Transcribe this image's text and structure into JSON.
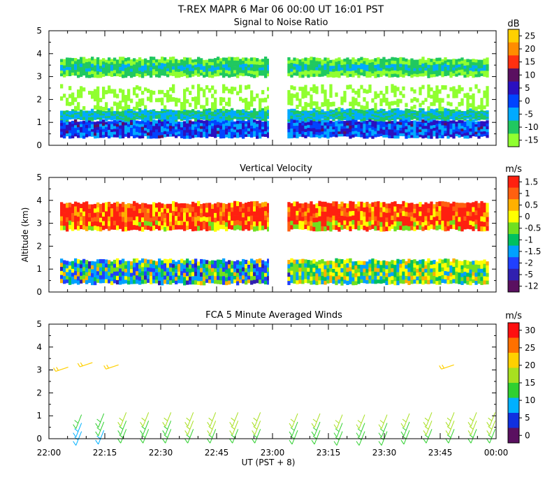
{
  "header": {
    "line1": "T-REX   MAPR   6 Mar 06   00:00 UT   16:01   PST"
  },
  "shared_axes": {
    "x_tick_labels": [
      "22:00",
      "22:15",
      "22:30",
      "22:45",
      "23:00",
      "23:15",
      "23:30",
      "23:45",
      "00:00"
    ],
    "x_label": "UT  (PST + 8)",
    "y_label": "Altitude (km)",
    "y_tick_labels": [
      "0",
      "1",
      "2",
      "3",
      "4",
      "5"
    ],
    "y_range": [
      0,
      5
    ],
    "x_range_minutes": [
      0,
      120
    ]
  },
  "chart_data": [
    {
      "type": "heatmap",
      "title": "Signal to Noise Ratio",
      "units": "dB",
      "colorbar_labels": [
        "25",
        "20",
        "15",
        "10",
        "5",
        "0",
        "-5",
        "-10",
        "-15"
      ],
      "colors": [
        "#ffd000",
        "#ff8c00",
        "#ff3010",
        "#5a1060",
        "#2a10c0",
        "#0044ff",
        "#00aaff",
        "#20c860",
        "#90ff30"
      ],
      "data_gap_minutes": [
        3,
        59,
        64,
        118
      ],
      "bands": [
        {
          "alt_from": 0.35,
          "alt_to": 1.1,
          "value_db": 2
        },
        {
          "alt_from": 1.1,
          "alt_to": 1.55,
          "value_db": -8
        },
        {
          "alt_from": 1.55,
          "alt_to": 2.6,
          "value_db": -14
        },
        {
          "alt_from": 3.0,
          "alt_to": 3.8,
          "value_db": -9
        }
      ]
    },
    {
      "type": "heatmap",
      "title": "Vertical Velocity",
      "units": "m/s",
      "colorbar_labels": [
        "1.5",
        "1",
        "0.5",
        "0",
        "-0.5",
        "-1",
        "-1.5",
        "-2",
        "-5",
        "-12"
      ],
      "colors": [
        "#ff2010",
        "#ff6010",
        "#ffb000",
        "#ffff00",
        "#70e020",
        "#00c060",
        "#00a0ff",
        "#2040ff",
        "#3020b0",
        "#5a1060"
      ],
      "data_gap_minutes": [
        3,
        59,
        64,
        118
      ],
      "bands": [
        {
          "alt_from": 0.35,
          "alt_to": 1.4,
          "value_ms": -1
        },
        {
          "alt_from": 2.7,
          "alt_to": 3.9,
          "value_ms": 1.2
        }
      ]
    },
    {
      "type": "barbs",
      "title": "FCA 5 Minute Averaged Winds",
      "units": "m/s",
      "colorbar_labels": [
        "30",
        "25",
        "20",
        "15",
        "10",
        "5",
        "0"
      ],
      "colors": [
        "#ff1010",
        "#ff7000",
        "#ffd000",
        "#a8e020",
        "#30d030",
        "#00b0ff",
        "#1030e0",
        "#5a1060"
      ],
      "barbs": [
        {
          "t": 3.5,
          "alt": 3.0,
          "speed": 20
        },
        {
          "t": 10,
          "alt": 3.2,
          "speed": 19
        },
        {
          "t": 17,
          "alt": 3.1,
          "speed": 19
        },
        {
          "t": 107,
          "alt": 3.1,
          "speed": 19
        },
        {
          "t": 8,
          "alt": 0.5,
          "speed": 7
        },
        {
          "t": 14,
          "alt": 0.55,
          "speed": 9
        },
        {
          "t": 20,
          "alt": 0.6,
          "speed": 11
        },
        {
          "t": 26,
          "alt": 0.6,
          "speed": 12
        },
        {
          "t": 32,
          "alt": 0.6,
          "speed": 12
        },
        {
          "t": 38,
          "alt": 0.6,
          "speed": 13
        },
        {
          "t": 44,
          "alt": 0.6,
          "speed": 13
        },
        {
          "t": 50,
          "alt": 0.6,
          "speed": 13
        },
        {
          "t": 56,
          "alt": 0.6,
          "speed": 13
        },
        {
          "t": 66,
          "alt": 0.55,
          "speed": 12
        },
        {
          "t": 72,
          "alt": 0.55,
          "speed": 12
        },
        {
          "t": 78,
          "alt": 0.5,
          "speed": 12
        },
        {
          "t": 84,
          "alt": 0.5,
          "speed": 12
        },
        {
          "t": 90,
          "alt": 0.5,
          "speed": 12
        },
        {
          "t": 96,
          "alt": 0.55,
          "speed": 12
        },
        {
          "t": 102,
          "alt": 0.6,
          "speed": 13
        },
        {
          "t": 108,
          "alt": 0.6,
          "speed": 14
        },
        {
          "t": 114,
          "alt": 0.6,
          "speed": 13
        },
        {
          "t": 119,
          "alt": 0.6,
          "speed": 13
        }
      ]
    }
  ]
}
